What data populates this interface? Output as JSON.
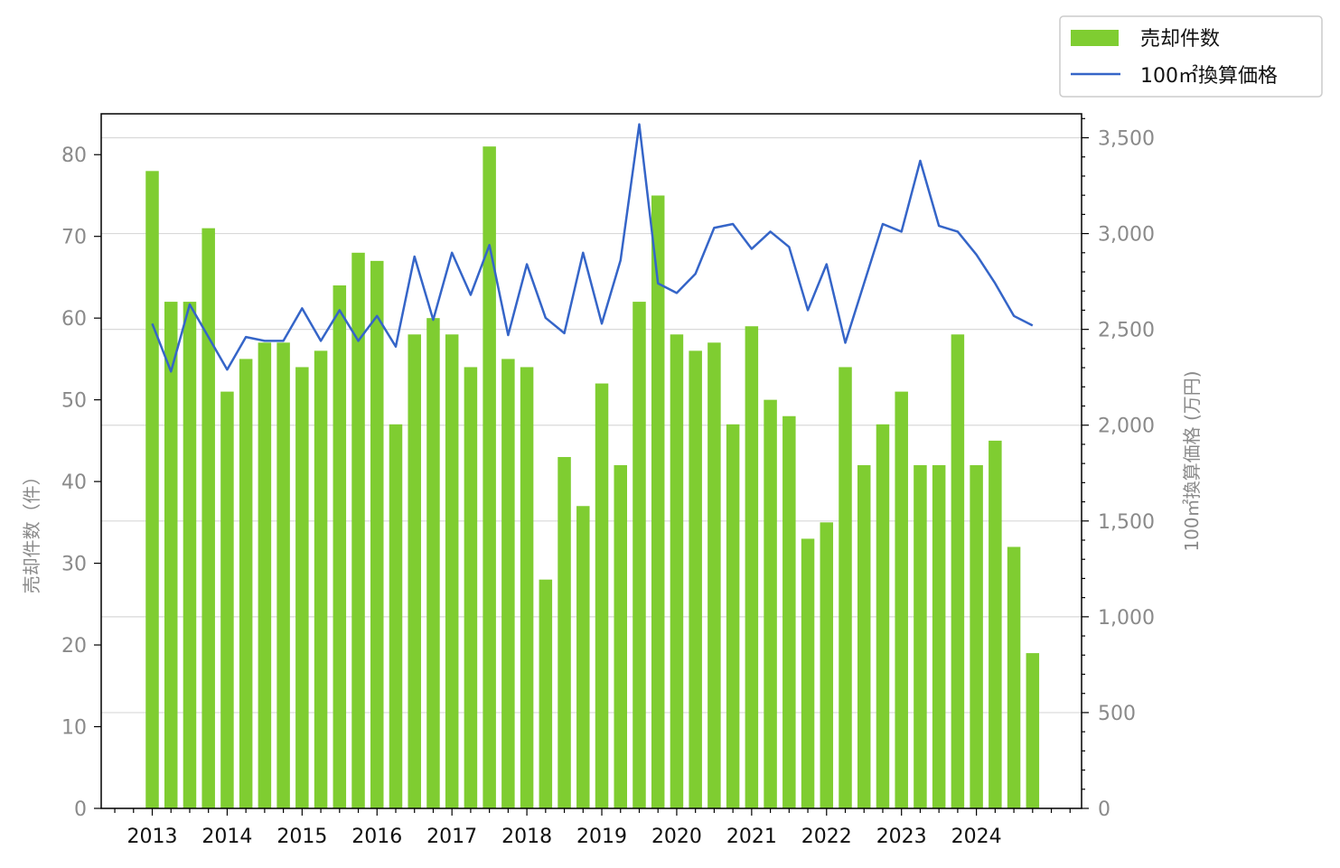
{
  "chart_data": {
    "type": "bar",
    "x_ticks": [
      "2013",
      "2014",
      "2015",
      "2016",
      "2017",
      "2018",
      "2019",
      "2020",
      "2021",
      "2022",
      "2023",
      "2024"
    ],
    "ylabel_left": "売却件数（件）",
    "ylabel_right": "100㎡換算価格 (万円)",
    "ylim_left": [
      0,
      85
    ],
    "ylim_right": [
      0,
      3625
    ],
    "yticks_left": [
      "0",
      "10",
      "20",
      "30",
      "40",
      "50",
      "60",
      "70",
      "80"
    ],
    "yticks_right": [
      "0",
      "500",
      "1,000",
      "1,500",
      "2,000",
      "2,500",
      "3,000",
      "3,500"
    ],
    "grid": "horizontal lines at right-axis ticks",
    "legend_position": "top-right, outside plot",
    "series": [
      {
        "name": "売却件数",
        "type": "bar",
        "axis": "left",
        "color": "#7fcd31",
        "values": [
          78,
          62,
          62,
          71,
          51,
          55,
          57,
          57,
          54,
          56,
          64,
          68,
          67,
          47,
          58,
          60,
          58,
          54,
          81,
          55,
          54,
          28,
          43,
          37,
          52,
          42,
          62,
          75,
          58,
          56,
          57,
          47,
          59,
          50,
          48,
          33,
          35,
          54,
          42,
          47,
          51,
          42,
          42,
          58,
          42,
          45,
          32,
          19
        ]
      },
      {
        "name": "100㎡換算価格",
        "type": "line",
        "axis": "right",
        "color": "#3565c8",
        "values": [
          2530,
          2280,
          2630,
          2460,
          2290,
          2460,
          2440,
          2440,
          2610,
          2440,
          2600,
          2440,
          2570,
          2410,
          2880,
          2550,
          2900,
          2680,
          2940,
          2470,
          2840,
          2560,
          2480,
          2900,
          2530,
          2860,
          3570,
          2740,
          2690,
          2790,
          3030,
          3050,
          2920,
          3010,
          2930,
          2600,
          2840,
          2430,
          2740,
          3050,
          3010,
          3380,
          3040,
          3010,
          2890,
          2740,
          2570,
          2520
        ]
      }
    ]
  }
}
